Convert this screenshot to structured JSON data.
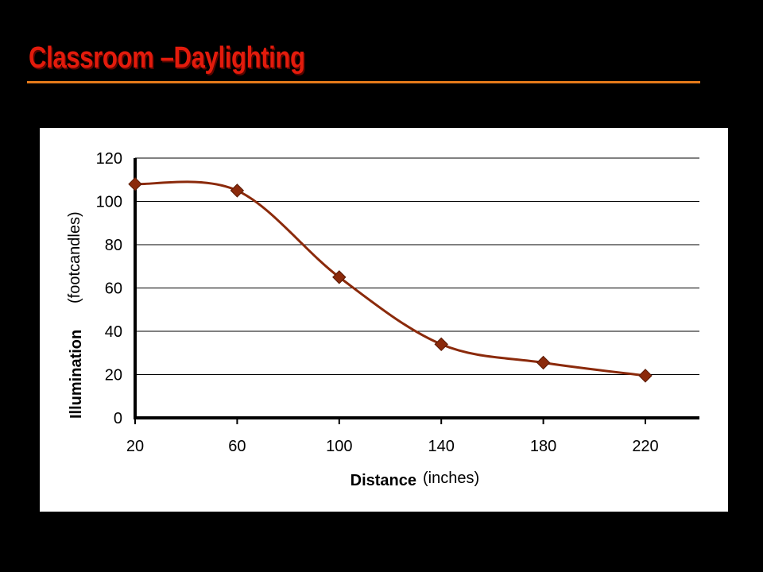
{
  "slide": {
    "title": "Classroom –Daylighting",
    "title_color": "#e31b0c",
    "rule_color": "#e57a1a",
    "background": "#000000"
  },
  "chart_data": {
    "type": "line",
    "smoothed": true,
    "x": [
      20,
      60,
      100,
      140,
      180,
      220
    ],
    "x_ticks": [
      "20",
      "60",
      "100",
      "140",
      "180",
      "220"
    ],
    "y_ticks": [
      "0",
      "20",
      "40",
      "60",
      "80",
      "100",
      "120"
    ],
    "series": [
      {
        "values": [
          108,
          105,
          65,
          34,
          25.5,
          19.5
        ],
        "color": "#8b2a0b",
        "marker": "diamond"
      }
    ],
    "xlabel": "Distance",
    "xlabel_unit": "(inches)",
    "ylabel": "Illumination",
    "ylabel_unit": "(footcandles)",
    "ylim": [
      0,
      120
    ],
    "grid": "horizontal"
  }
}
